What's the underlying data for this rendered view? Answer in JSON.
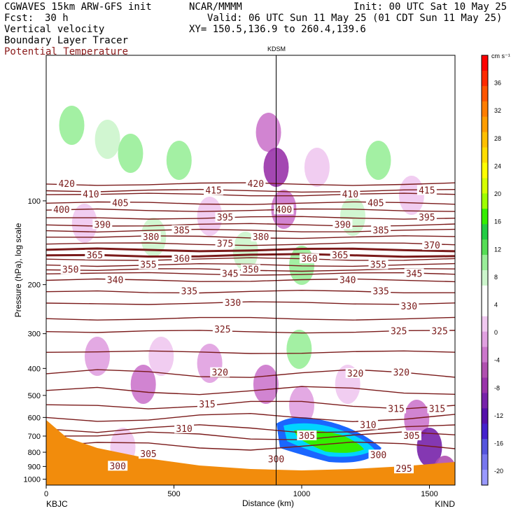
{
  "header": {
    "model": "CGWAVES 15km ARW-GFS init",
    "org": "NCAR/MMMM",
    "init": "Init: 00 UTC Sat 10 May 25",
    "fcst_label": "Fcst:",
    "fcst_value": "30 h",
    "valid": "Valid: 06 UTC Sun 11 May 25 (01 CDT Sun 11 May 25)",
    "field1": "Vertical velocity",
    "field2": "Boundary Layer Tracer",
    "field3": "Potential Temperature",
    "xy": "XY= 150.5,136.9 to 260.4,139.6",
    "station_mid": "KDSM",
    "station_left": "KBJC",
    "station_right": "KIND"
  },
  "colors": {
    "theta": "#7a1a1a",
    "theta_title": "#8b1a1a",
    "terrain": "#f28c0c"
  },
  "chart_data": {
    "type": "heatmap",
    "xlabel": "Distance (km)",
    "ylabel": "Pressure (hPa), log scale",
    "x_ticks": [
      0,
      500,
      1000,
      1500
    ],
    "y_ticks": [
      100,
      200,
      300,
      400,
      500,
      600,
      700,
      800,
      900,
      1000
    ],
    "xlim": [
      0,
      1600
    ],
    "ylim": [
      1050,
      30
    ],
    "y_scale": "log",
    "vertical_marker_km": 900,
    "colorbar": {
      "unit": "cm s⁻¹",
      "tick_labels": [
        36,
        32,
        28,
        24,
        20,
        16,
        12,
        8,
        4,
        0,
        -4,
        -8,
        -12,
        -16,
        -20
      ],
      "colors": [
        "#ff0000",
        "#ff2a00",
        "#ff5500",
        "#ff7d00",
        "#ff9d00",
        "#ffbf00",
        "#ffdd00",
        "#ffff00",
        "#d6ff00",
        "#9eff00",
        "#33ee00",
        "#22cc44",
        "#55dd55",
        "#99ee99",
        "#ccf5cc",
        "#ffffff",
        "#ffffff",
        "#f0c8f0",
        "#e0a0e0",
        "#cc77cc",
        "#b050b0",
        "#9933aa",
        "#7722aa",
        "#5511aa",
        "#4422cc",
        "#5555dd",
        "#7777ee",
        "#9999ff"
      ]
    },
    "theta_labels": [
      {
        "v": "420",
        "x": 80,
        "p": 87
      },
      {
        "v": "420",
        "x": 820,
        "p": 87
      },
      {
        "v": "410",
        "x": 175,
        "p": 95
      },
      {
        "v": "410",
        "x": 1190,
        "p": 95
      },
      {
        "v": "415",
        "x": 655,
        "p": 92
      },
      {
        "v": "415",
        "x": 1490,
        "p": 92
      },
      {
        "v": "405",
        "x": 290,
        "p": 102
      },
      {
        "v": "405",
        "x": 1290,
        "p": 102
      },
      {
        "v": "400",
        "x": 60,
        "p": 108
      },
      {
        "v": "400",
        "x": 930,
        "p": 108
      },
      {
        "v": "395",
        "x": 700,
        "p": 115
      },
      {
        "v": "395",
        "x": 1490,
        "p": 115
      },
      {
        "v": "390",
        "x": 220,
        "p": 122
      },
      {
        "v": "390",
        "x": 1160,
        "p": 122
      },
      {
        "v": "385",
        "x": 530,
        "p": 128
      },
      {
        "v": "385",
        "x": 1310,
        "p": 128
      },
      {
        "v": "380",
        "x": 410,
        "p": 135
      },
      {
        "v": "380",
        "x": 840,
        "p": 135
      },
      {
        "v": "375",
        "x": 700,
        "p": 143
      },
      {
        "v": "370",
        "x": 1510,
        "p": 145
      },
      {
        "v": "365",
        "x": 190,
        "p": 157
      },
      {
        "v": "365",
        "x": 1150,
        "p": 157
      },
      {
        "v": "360",
        "x": 530,
        "p": 162
      },
      {
        "v": "360",
        "x": 1030,
        "p": 162
      },
      {
        "v": "355",
        "x": 400,
        "p": 170
      },
      {
        "v": "355",
        "x": 1300,
        "p": 170
      },
      {
        "v": "350",
        "x": 95,
        "p": 177
      },
      {
        "v": "350",
        "x": 800,
        "p": 177
      },
      {
        "v": "345",
        "x": 720,
        "p": 183
      },
      {
        "v": "345",
        "x": 1440,
        "p": 183
      },
      {
        "v": "340",
        "x": 270,
        "p": 193
      },
      {
        "v": "340",
        "x": 1180,
        "p": 193
      },
      {
        "v": "335",
        "x": 560,
        "p": 212
      },
      {
        "v": "335",
        "x": 1310,
        "p": 212
      },
      {
        "v": "330",
        "x": 730,
        "p": 233
      },
      {
        "v": "330",
        "x": 1420,
        "p": 240
      },
      {
        "v": "325",
        "x": 690,
        "p": 290
      },
      {
        "v": "325",
        "x": 1380,
        "p": 295
      },
      {
        "v": "325",
        "x": 1540,
        "p": 295
      },
      {
        "v": "320",
        "x": 680,
        "p": 415
      },
      {
        "v": "320",
        "x": 1210,
        "p": 418
      },
      {
        "v": "320",
        "x": 1390,
        "p": 415
      },
      {
        "v": "315",
        "x": 630,
        "p": 540
      },
      {
        "v": "315",
        "x": 1370,
        "p": 560
      },
      {
        "v": "315",
        "x": 1530,
        "p": 560
      },
      {
        "v": "310",
        "x": 540,
        "p": 660
      },
      {
        "v": "310",
        "x": 1260,
        "p": 640
      },
      {
        "v": "305",
        "x": 400,
        "p": 815
      },
      {
        "v": "305",
        "x": 1020,
        "p": 700
      },
      {
        "v": "305",
        "x": 1430,
        "p": 700
      },
      {
        "v": "300",
        "x": 280,
        "p": 900
      },
      {
        "v": "300",
        "x": 900,
        "p": 850
      },
      {
        "v": "300",
        "x": 1300,
        "p": 820
      },
      {
        "v": "295",
        "x": 1400,
        "p": 920
      }
    ]
  }
}
